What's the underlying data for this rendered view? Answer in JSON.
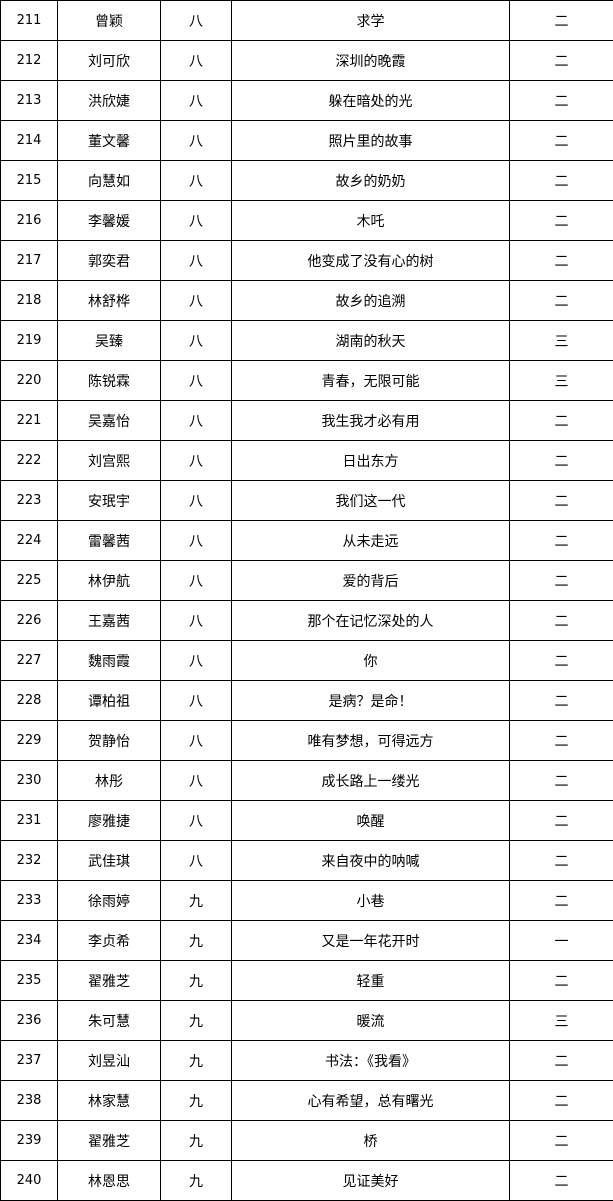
{
  "rows": [
    {
      "no": "211",
      "name": "曾颖",
      "grade": "八",
      "title": "求学",
      "award": "二"
    },
    {
      "no": "212",
      "name": "刘可欣",
      "grade": "八",
      "title": "深圳的晚霞",
      "award": "二"
    },
    {
      "no": "213",
      "name": "洪欣婕",
      "grade": "八",
      "title": "躲在暗处的光",
      "award": "二"
    },
    {
      "no": "214",
      "name": "董文馨",
      "grade": "八",
      "title": "照片里的故事",
      "award": "二"
    },
    {
      "no": "215",
      "name": "向慧如",
      "grade": "八",
      "title": "故乡的奶奶",
      "award": "二"
    },
    {
      "no": "216",
      "name": "李馨媛",
      "grade": "八",
      "title": "木吒",
      "award": "二"
    },
    {
      "no": "217",
      "name": "郭奕君",
      "grade": "八",
      "title": "他变成了没有心的树",
      "award": "二"
    },
    {
      "no": "218",
      "name": "林舒桦",
      "grade": "八",
      "title": "故乡的追溯",
      "award": "二"
    },
    {
      "no": "219",
      "name": "吴臻",
      "grade": "八",
      "title": "湖南的秋天",
      "award": "三"
    },
    {
      "no": "220",
      "name": "陈锐霖",
      "grade": "八",
      "title": "青春，无限可能",
      "award": "三"
    },
    {
      "no": "221",
      "name": "吴嘉怡",
      "grade": "八",
      "title": "我生我才必有用",
      "award": "二"
    },
    {
      "no": "222",
      "name": "刘宫熙",
      "grade": "八",
      "title": "日出东方",
      "award": "二"
    },
    {
      "no": "223",
      "name": "安珉宇",
      "grade": "八",
      "title": "我们这一代",
      "award": "二"
    },
    {
      "no": "224",
      "name": "雷馨茜",
      "grade": "八",
      "title": "从未走远",
      "award": "二"
    },
    {
      "no": "225",
      "name": "林伊航",
      "grade": "八",
      "title": "爱的背后",
      "award": "二"
    },
    {
      "no": "226",
      "name": "王嘉茜",
      "grade": "八",
      "title": "那个在记忆深处的人",
      "award": "二"
    },
    {
      "no": "227",
      "name": "魏雨霞",
      "grade": "八",
      "title": "你",
      "award": "二"
    },
    {
      "no": "228",
      "name": "谭柏祖",
      "grade": "八",
      "title": "是病？是命！",
      "award": "二"
    },
    {
      "no": "229",
      "name": "贺静怡",
      "grade": "八",
      "title": "唯有梦想，可得远方",
      "award": "二"
    },
    {
      "no": "230",
      "name": "林彤",
      "grade": "八",
      "title": "成长路上一缕光",
      "award": "二"
    },
    {
      "no": "231",
      "name": "廖雅捷",
      "grade": "八",
      "title": "唤醒",
      "award": "二"
    },
    {
      "no": "232",
      "name": "武佳琪",
      "grade": "八",
      "title": "来自夜中的呐喊",
      "award": "二"
    },
    {
      "no": "233",
      "name": "徐雨婷",
      "grade": "九",
      "title": "小巷",
      "award": "二"
    },
    {
      "no": "234",
      "name": "李贞希",
      "grade": "九",
      "title": "又是一年花开时",
      "award": "一"
    },
    {
      "no": "235",
      "name": "翟雅芝",
      "grade": "九",
      "title": "轻重",
      "award": "二"
    },
    {
      "no": "236",
      "name": "朱可慧",
      "grade": "九",
      "title": "暖流",
      "award": "三"
    },
    {
      "no": "237",
      "name": "刘昱汕",
      "grade": "九",
      "title": "书法：《我看》",
      "award": "二"
    },
    {
      "no": "238",
      "name": "林家慧",
      "grade": "九",
      "title": "心有希望，总有曙光",
      "award": "二"
    },
    {
      "no": "239",
      "name": "翟雅芝",
      "grade": "九",
      "title": "桥",
      "award": "二"
    },
    {
      "no": "240",
      "name": "林恩思",
      "grade": "九",
      "title": "见证美好",
      "award": "二"
    }
  ]
}
